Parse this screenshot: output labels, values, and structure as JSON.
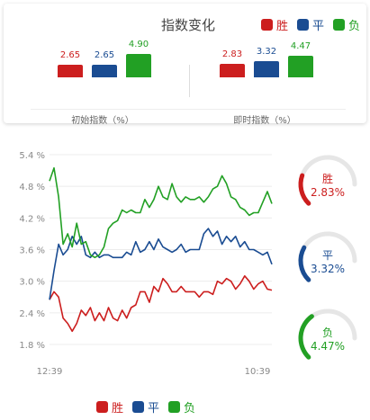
{
  "colors": {
    "win": "#cc1e1e",
    "draw": "#1a4c92",
    "loss": "#22a024"
  },
  "legend": {
    "win": "胜",
    "draw": "平",
    "loss": "负"
  },
  "chart_data": [
    {
      "type": "bar",
      "title": "指数变化",
      "groups": [
        {
          "label": "初始指数（%）",
          "values": [
            2.65,
            2.65,
            4.9
          ],
          "value_labels": [
            "2.65",
            "2.65",
            "4.90"
          ]
        },
        {
          "label": "即时指数（%）",
          "values": [
            2.83,
            3.32,
            4.47
          ],
          "value_labels": [
            "2.83",
            "3.32",
            "4.47"
          ]
        }
      ],
      "series_names": [
        "胜",
        "平",
        "负"
      ]
    },
    {
      "type": "line",
      "x_ticks": [
        "12:39",
        "10:39"
      ],
      "y_ticks": [
        "5.4 %",
        "4.8 %",
        "4.2 %",
        "3.6 %",
        "3.0 %",
        "2.4 %",
        "1.8 %"
      ],
      "ylim": [
        1.8,
        5.4
      ],
      "grid": true,
      "legend_position": "bottom",
      "series": [
        {
          "name": "胜",
          "color_key": "win",
          "values": [
            2.65,
            2.8,
            2.7,
            2.3,
            2.2,
            2.05,
            2.2,
            2.45,
            2.35,
            2.5,
            2.25,
            2.4,
            2.25,
            2.5,
            2.3,
            2.25,
            2.45,
            2.3,
            2.5,
            2.55,
            2.8,
            2.8,
            2.6,
            2.9,
            2.8,
            3.05,
            2.95,
            2.8,
            2.8,
            2.9,
            2.8,
            2.8,
            2.8,
            2.7,
            2.8,
            2.8,
            2.75,
            3.0,
            2.95,
            3.05,
            3.0,
            2.85,
            2.95,
            3.1,
            3.0,
            2.85,
            2.95,
            3.0,
            2.85,
            2.83
          ]
        },
        {
          "name": "平",
          "color_key": "draw",
          "values": [
            2.65,
            3.2,
            3.7,
            3.5,
            3.6,
            3.85,
            3.7,
            3.85,
            3.5,
            3.45,
            3.55,
            3.45,
            3.5,
            3.5,
            3.45,
            3.45,
            3.45,
            3.55,
            3.5,
            3.75,
            3.55,
            3.6,
            3.75,
            3.6,
            3.8,
            3.65,
            3.6,
            3.55,
            3.6,
            3.7,
            3.55,
            3.6,
            3.6,
            3.6,
            3.9,
            4.0,
            3.85,
            3.95,
            3.7,
            3.85,
            3.75,
            3.85,
            3.65,
            3.75,
            3.6,
            3.6,
            3.55,
            3.5,
            3.55,
            3.32
          ]
        },
        {
          "name": "负",
          "color_key": "loss",
          "values": [
            4.9,
            5.15,
            4.6,
            3.7,
            3.9,
            3.65,
            4.1,
            3.7,
            3.75,
            3.5,
            3.45,
            3.5,
            3.65,
            4.0,
            4.1,
            4.15,
            4.35,
            4.3,
            4.35,
            4.3,
            4.3,
            4.55,
            4.4,
            4.55,
            4.8,
            4.6,
            4.55,
            4.85,
            4.6,
            4.5,
            4.6,
            4.55,
            4.55,
            4.6,
            4.5,
            4.6,
            4.75,
            4.8,
            5.0,
            4.85,
            4.6,
            4.55,
            4.4,
            4.35,
            4.25,
            4.3,
            4.3,
            4.5,
            4.7,
            4.47
          ]
        }
      ]
    }
  ],
  "gauges": [
    {
      "label": "胜",
      "value_text": "2.83%",
      "color_key": "win",
      "fraction": 0.13
    },
    {
      "label": "平",
      "value_text": "3.32%",
      "color_key": "draw",
      "fraction": 0.15
    },
    {
      "label": "负",
      "value_text": "4.47%",
      "color_key": "loss",
      "fraction": 0.2
    }
  ]
}
